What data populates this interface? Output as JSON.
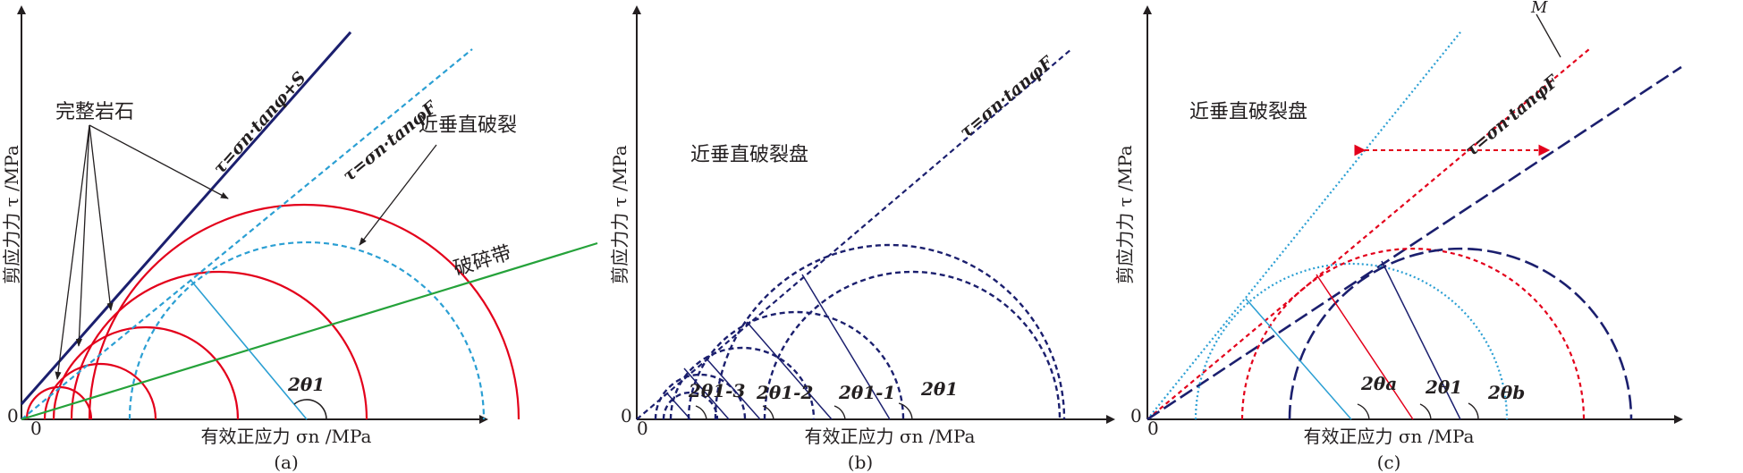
{
  "panels": [
    {
      "label": "(a)",
      "xlabel": "有效正应力 σn /MPa",
      "ylabel": "剪应力力 τ /MPa",
      "origin_y": "0",
      "origin_x": "0",
      "eq_intact": "τ=σn·tanφ+S",
      "eq_fracture": "τ=σn·tanφF",
      "ann_intact": "完整岩石",
      "ann_fracture": "近垂直破裂",
      "ann_band": "破碎带",
      "angle": "2θ1"
    },
    {
      "label": "(b)",
      "xlabel": "有效正应力 σn /MPa",
      "ylabel": "剪应力力 τ /MPa",
      "origin_y": "0",
      "origin_x": "0",
      "eq": "τ=σn·tanφF",
      "ann": "近垂直破裂盘",
      "angles": [
        "2θ1-3",
        "2θ1-2",
        "2θ1-1",
        "2θ1"
      ]
    },
    {
      "label": "(c)",
      "xlabel": "有效正应力 σn /MPa",
      "ylabel": "剪应力力 τ /MPa",
      "origin_y": "0",
      "origin_x": "0",
      "eq": "τ=σn·tanφF",
      "ann": "近垂直破裂盘",
      "m_label": "M",
      "angles": [
        "2θa",
        "2θ1",
        "2θb"
      ]
    }
  ],
  "colors": {
    "red": "#e3001b",
    "navy": "#1b1f6e",
    "cyan": "#2b9fd3",
    "green": "#25a23a",
    "black": "#231f20"
  }
}
